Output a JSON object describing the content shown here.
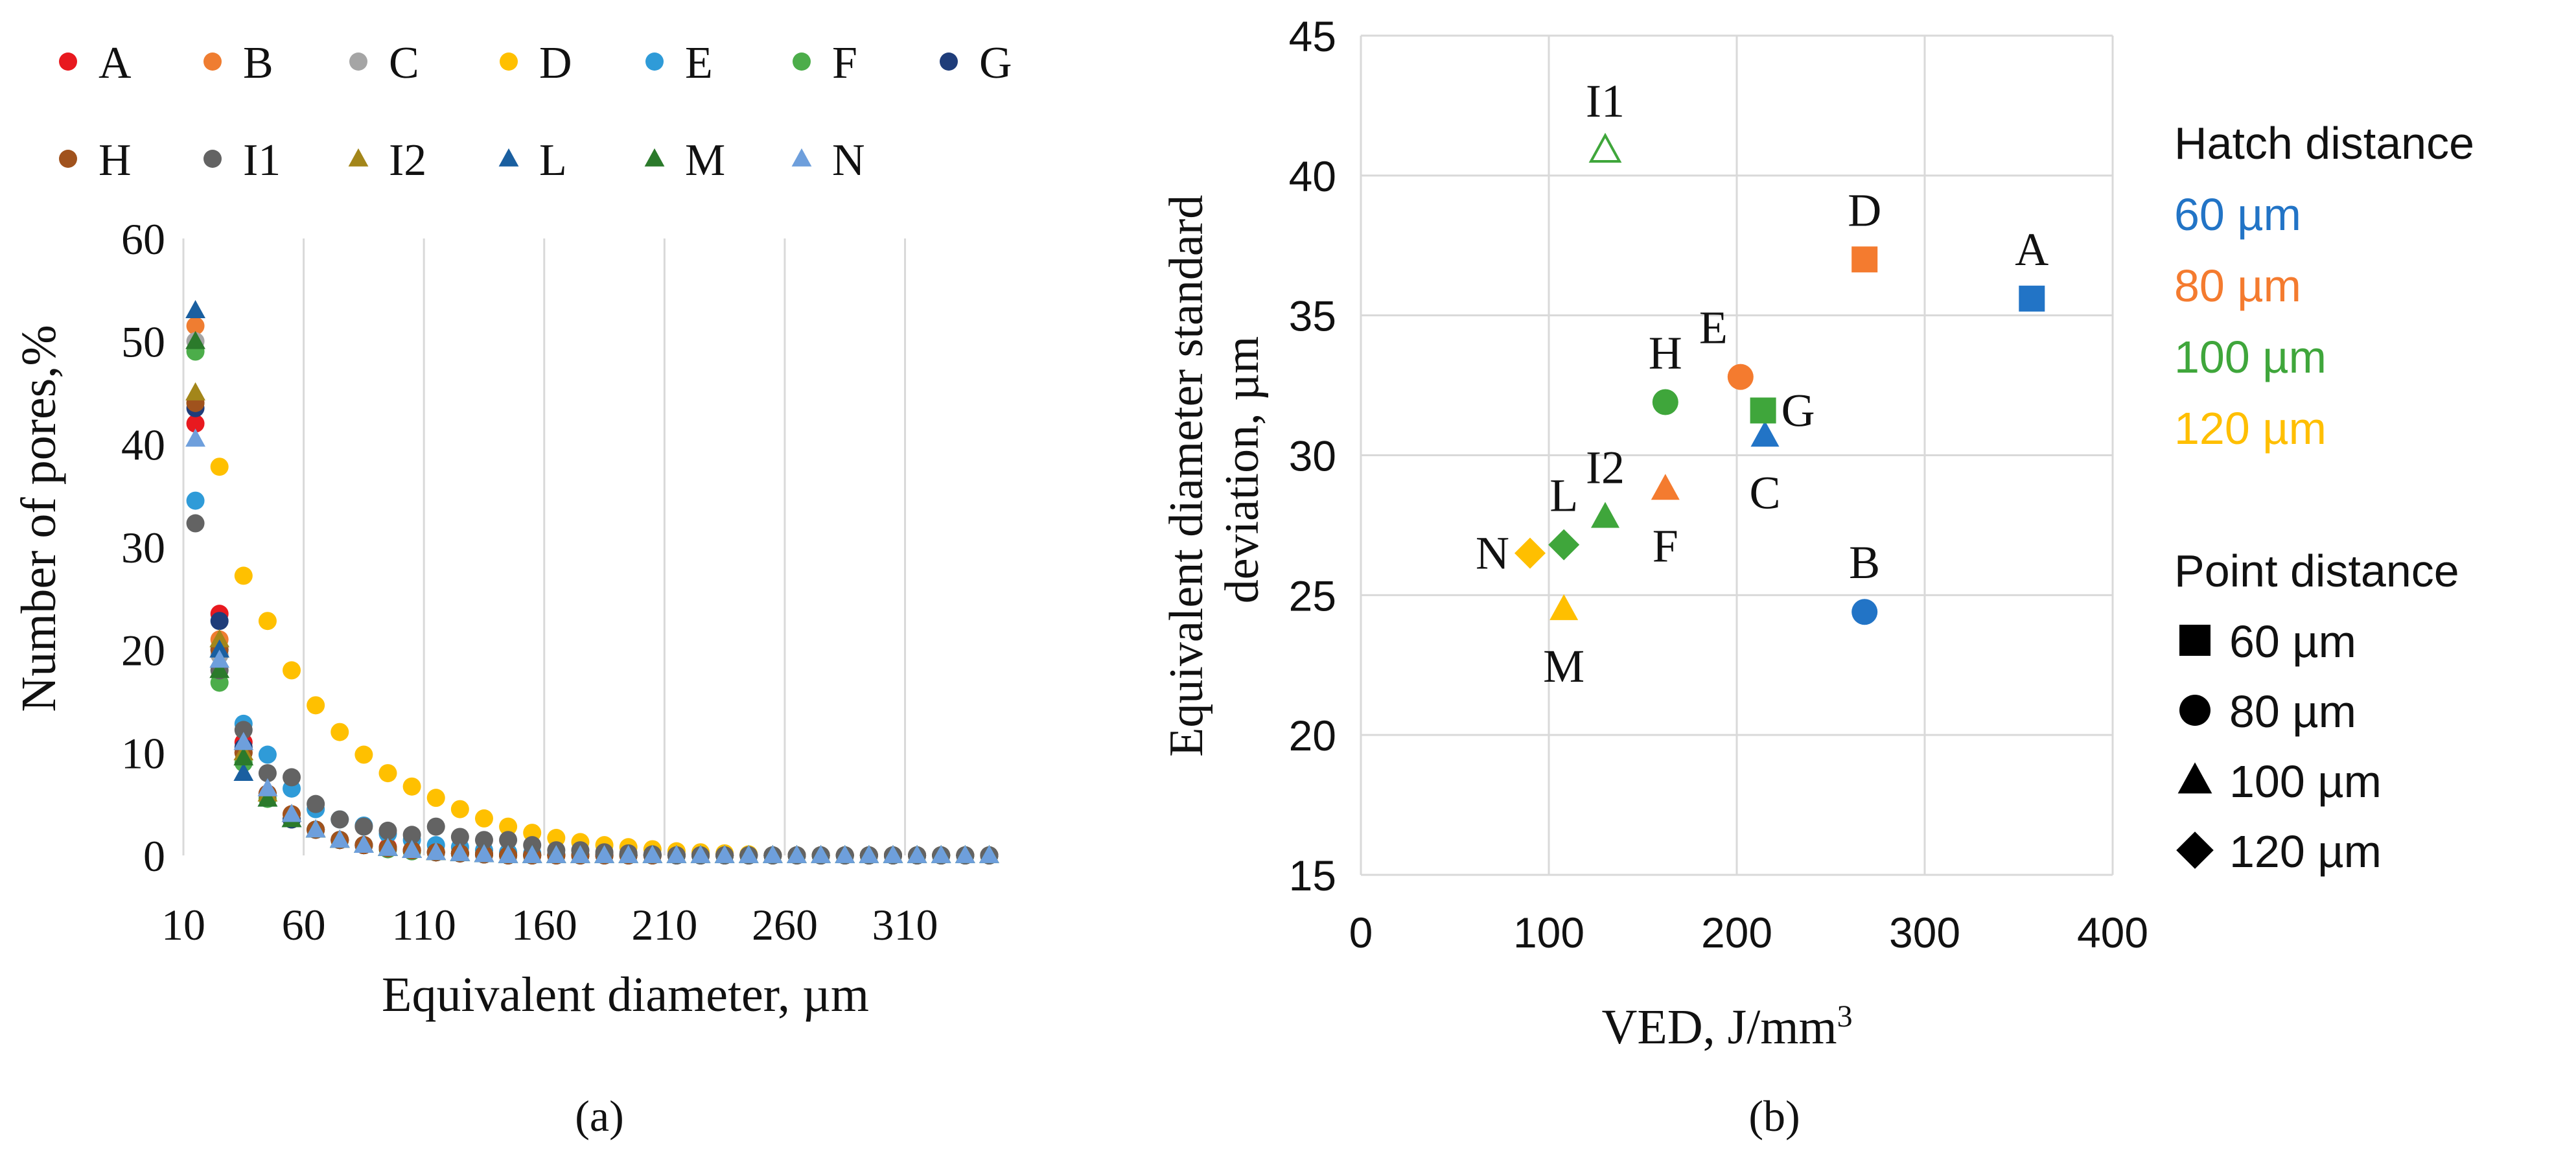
{
  "chart_data": [
    {
      "type": "scatter",
      "panel_label": "(a)",
      "xlabel": "Equivalent diameter, µm",
      "ylabel": "Number of pores,%",
      "xlim": [
        10,
        350
      ],
      "ylim": [
        0,
        60
      ],
      "xticks": [
        "10",
        "60",
        "110",
        "160",
        "210",
        "260",
        "310"
      ],
      "yticks": [
        "0",
        "10",
        "20",
        "30",
        "40",
        "50",
        "60"
      ],
      "grid": "vertical",
      "legend_position": "top",
      "x": [
        15,
        25,
        35,
        45,
        55,
        65,
        75,
        85,
        95,
        105,
        115,
        125,
        135,
        145,
        155,
        165,
        175,
        185,
        195,
        205,
        215,
        225,
        235,
        245,
        255,
        265,
        275,
        285,
        295,
        305,
        315,
        325,
        335,
        345
      ],
      "series": [
        {
          "name": "A",
          "color": "#e8191f",
          "marker": "circle",
          "values": [
            42,
            23.5,
            11,
            6,
            3.5,
            2.5,
            1.5,
            1,
            0.8,
            0.5,
            0.3,
            0.2,
            0.1,
            0.1,
            0,
            0,
            0,
            0,
            0,
            0,
            0,
            0,
            0,
            0,
            0,
            0,
            0,
            0,
            0,
            0,
            0,
            0,
            0,
            0
          ]
        },
        {
          "name": "B",
          "color": "#ef7d31",
          "marker": "circle",
          "values": [
            51.5,
            21,
            10,
            6,
            4,
            2.5,
            1.5,
            1,
            0.7,
            0.5,
            0.3,
            0.2,
            0.1,
            0,
            0,
            0,
            0,
            0,
            0,
            0,
            0,
            0,
            0,
            0,
            0,
            0,
            0,
            0,
            0,
            0,
            0,
            0,
            0,
            0
          ]
        },
        {
          "name": "C",
          "color": "#a5a5a5",
          "marker": "circle",
          "values": [
            50,
            19.5,
            10,
            6,
            3.5,
            2.5,
            1.5,
            1,
            0.6,
            0.4,
            0.3,
            0.2,
            0.1,
            0,
            0,
            0,
            0,
            0,
            0,
            0,
            0,
            0,
            0,
            0,
            0,
            0,
            0,
            0,
            0,
            0,
            0,
            0,
            0,
            0
          ]
        },
        {
          "name": "D",
          "color": "#ffc000",
          "marker": "circle",
          "values": [
            44,
            37.8,
            27.2,
            22.8,
            18,
            14.6,
            12,
            9.8,
            8,
            6.7,
            5.6,
            4.5,
            3.6,
            2.8,
            2.2,
            1.7,
            1.3,
            1,
            0.8,
            0.6,
            0.4,
            0.3,
            0.2,
            0.1,
            0,
            0,
            0,
            0,
            0,
            0,
            0,
            0,
            0,
            0
          ]
        },
        {
          "name": "E",
          "color": "#2f9bd8",
          "marker": "circle",
          "values": [
            34.5,
            20,
            12.8,
            9.8,
            6.5,
            4.5,
            3.5,
            2.9,
            2.1,
            1.5,
            1,
            0.8,
            0.5,
            0.3,
            0.2,
            0.1,
            0,
            0,
            0,
            0,
            0,
            0,
            0,
            0,
            0,
            0,
            0,
            0,
            0,
            0,
            0,
            0,
            0,
            0
          ]
        },
        {
          "name": "F",
          "color": "#4cad4a",
          "marker": "circle",
          "values": [
            49,
            16.8,
            9,
            5.5,
            3.5,
            2.5,
            1.5,
            1,
            0.6,
            0.4,
            0.3,
            0.2,
            0.1,
            0,
            0,
            0,
            0,
            0,
            0,
            0,
            0,
            0,
            0,
            0,
            0,
            0,
            0,
            0,
            0,
            0,
            0,
            0,
            0,
            0
          ]
        },
        {
          "name": "G",
          "color": "#1f3d7a",
          "marker": "circle",
          "values": [
            43.5,
            22.8,
            10.5,
            6,
            3.5,
            2.5,
            1.5,
            1,
            0.7,
            0.5,
            0.3,
            0.2,
            0.1,
            0,
            0,
            0,
            0,
            0,
            0,
            0,
            0,
            0,
            0,
            0,
            0,
            0,
            0,
            0,
            0,
            0,
            0,
            0,
            0,
            0
          ]
        },
        {
          "name": "H",
          "color": "#a0521d",
          "marker": "circle",
          "values": [
            44,
            20,
            10,
            6,
            4,
            2.5,
            1.5,
            1,
            0.7,
            0.5,
            0.3,
            0.2,
            0.1,
            0,
            0,
            0,
            0,
            0,
            0,
            0,
            0,
            0,
            0,
            0,
            0,
            0,
            0,
            0,
            0,
            0,
            0,
            0,
            0,
            0
          ]
        },
        {
          "name": "I1",
          "color": "#636363",
          "marker": "circle",
          "values": [
            32.3,
            18,
            12.2,
            8,
            7.6,
            5,
            3.5,
            2.8,
            2.4,
            2,
            2.8,
            1.8,
            1.5,
            1.5,
            1,
            0.5,
            0.5,
            0.3,
            0.2,
            0.1,
            0,
            0,
            0,
            0,
            0,
            0,
            0,
            0,
            0,
            0,
            0,
            0,
            0,
            0
          ]
        },
        {
          "name": "I2",
          "color": "#a3861a",
          "marker": "triangle",
          "values": [
            45,
            21,
            10,
            6,
            4,
            2.5,
            1.5,
            1,
            0.7,
            0.5,
            0.3,
            0.2,
            0.1,
            0,
            0,
            0,
            0,
            0,
            0,
            0,
            0,
            0,
            0,
            0,
            0,
            0,
            0,
            0,
            0,
            0,
            0,
            0,
            0,
            0
          ]
        },
        {
          "name": "L",
          "color": "#1a5fa0",
          "marker": "triangle",
          "values": [
            53,
            20,
            8,
            5.5,
            3.5,
            2.5,
            1.5,
            1,
            0.7,
            0.5,
            0.3,
            0.2,
            0.1,
            0,
            0,
            0,
            0,
            0,
            0,
            0,
            0,
            0,
            0,
            0,
            0,
            0,
            0,
            0,
            0,
            0,
            0,
            0,
            0,
            0
          ]
        },
        {
          "name": "M",
          "color": "#2b7a2b",
          "marker": "triangle",
          "values": [
            50,
            18,
            9.5,
            5.5,
            3.5,
            2.5,
            1.5,
            1,
            0.7,
            0.5,
            0.3,
            0.2,
            0.1,
            0,
            0,
            0,
            0,
            0,
            0,
            0,
            0,
            0,
            0,
            0,
            0,
            0,
            0,
            0,
            0,
            0,
            0,
            0,
            0,
            0
          ]
        },
        {
          "name": "N",
          "color": "#6e9fdc",
          "marker": "triangle",
          "values": [
            40.5,
            19,
            11,
            6.5,
            4,
            2.5,
            1.5,
            1,
            0.7,
            0.5,
            0.3,
            0.2,
            0.1,
            0,
            0,
            0,
            0,
            0,
            0,
            0,
            0,
            0,
            0,
            0,
            0,
            0,
            0,
            0,
            0,
            0,
            0,
            0,
            0,
            0
          ]
        }
      ]
    },
    {
      "type": "scatter",
      "panel_label": "(b)",
      "xlabel": "VED, J/mm",
      "xlabel_superscript": "3",
      "ylabel_lines": [
        "Equivalent diameter standard",
        "deviation, µm"
      ],
      "xlim": [
        0,
        400
      ],
      "ylim": [
        15,
        45
      ],
      "xticks": [
        "0",
        "100",
        "200",
        "300",
        "400"
      ],
      "yticks": [
        "15",
        "20",
        "25",
        "30",
        "35",
        "40",
        "45"
      ],
      "grid": "both",
      "points": [
        {
          "label": "A",
          "x": 357,
          "y": 35.6,
          "hatch": 60,
          "point": 60,
          "label_side": "above"
        },
        {
          "label": "B",
          "x": 268,
          "y": 24.4,
          "hatch": 60,
          "point": 80,
          "label_side": "above"
        },
        {
          "label": "C",
          "x": 215,
          "y": 30.7,
          "hatch": 60,
          "point": 100,
          "label_side": "below"
        },
        {
          "label": "D",
          "x": 268,
          "y": 37.0,
          "hatch": 80,
          "point": 60,
          "label_side": "above"
        },
        {
          "label": "E",
          "x": 202,
          "y": 32.8,
          "hatch": 80,
          "point": 80,
          "label_side": "above-left"
        },
        {
          "label": "F",
          "x": 162,
          "y": 28.8,
          "hatch": 80,
          "point": 100,
          "label_side": "below"
        },
        {
          "label": "G",
          "x": 214,
          "y": 31.6,
          "hatch": 100,
          "point": 60,
          "label_side": "right"
        },
        {
          "label": "H",
          "x": 162,
          "y": 31.9,
          "hatch": 100,
          "point": 80,
          "label_side": "above"
        },
        {
          "label": "I1",
          "x": 130,
          "y": 40.9,
          "hatch": 100,
          "point": 100,
          "label_side": "above",
          "hollow": true
        },
        {
          "label": "I2",
          "x": 130,
          "y": 27.8,
          "hatch": 100,
          "point": 100,
          "label_side": "above"
        },
        {
          "label": "L",
          "x": 108,
          "y": 26.8,
          "hatch": 100,
          "point": 120,
          "label_side": "above"
        },
        {
          "label": "M",
          "x": 108,
          "y": 24.5,
          "hatch": 120,
          "point": 100,
          "label_side": "below"
        },
        {
          "label": "N",
          "x": 90,
          "y": 26.5,
          "hatch": 120,
          "point": 120,
          "label_side": "left"
        }
      ],
      "legend_position": "right",
      "legend": {
        "hatch_title": "Hatch distance",
        "hatch_entries": [
          {
            "label": "60 µm",
            "color": "#2274c6"
          },
          {
            "label": "80 µm",
            "color": "#f47b2f"
          },
          {
            "label": "100 µm",
            "color": "#3fa63b"
          },
          {
            "label": "120 µm",
            "color": "#ffbf00"
          }
        ],
        "point_title": "Point distance",
        "point_entries": [
          {
            "label": "60 µm",
            "marker": "square"
          },
          {
            "label": "80 µm",
            "marker": "circle"
          },
          {
            "label": "100 µm",
            "marker": "triangle"
          },
          {
            "label": "120 µm",
            "marker": "diamond"
          }
        ]
      }
    }
  ]
}
